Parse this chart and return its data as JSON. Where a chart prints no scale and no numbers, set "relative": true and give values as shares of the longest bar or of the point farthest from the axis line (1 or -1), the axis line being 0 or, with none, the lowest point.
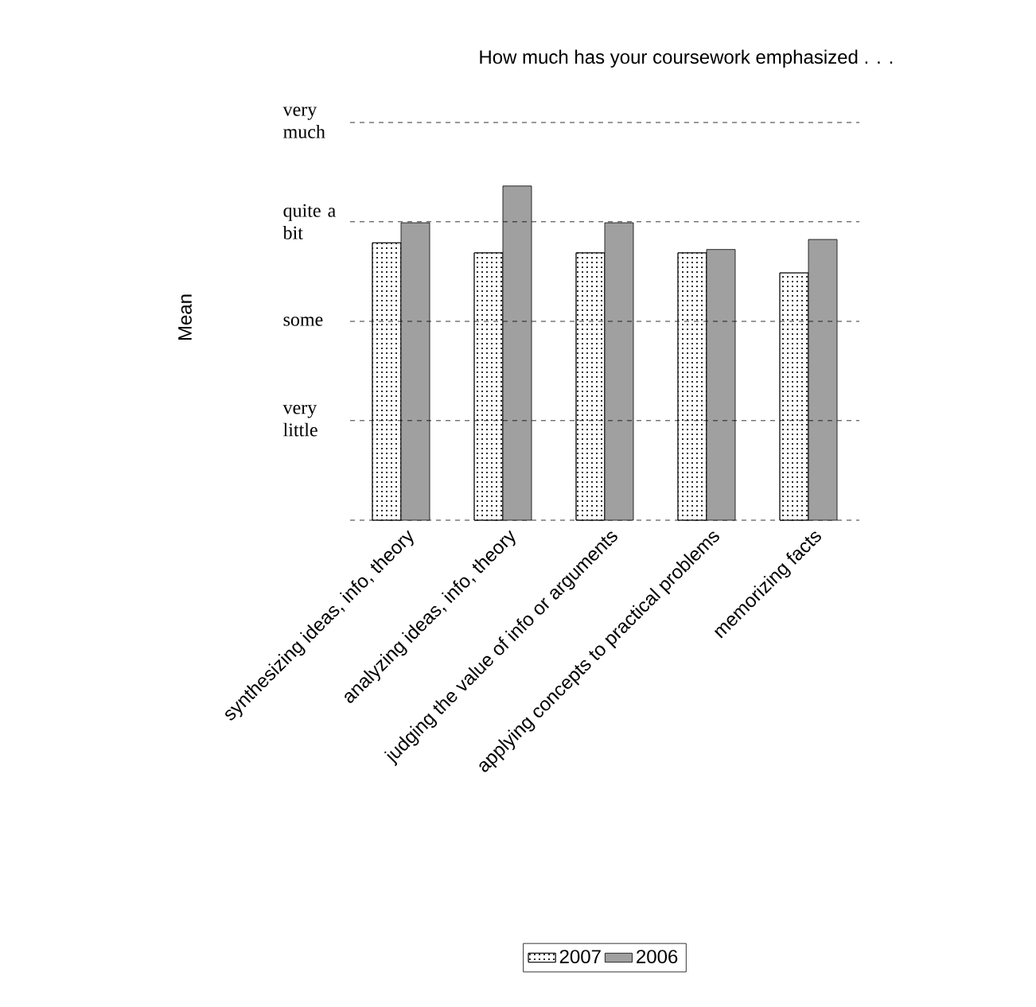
{
  "chart_data": {
    "type": "bar",
    "title": "How much has your coursework emphasized . . .",
    "ylabel": "Mean",
    "relative": true,
    "categories": [
      "synthesizing ideas, info, theory",
      "analyzing ideas, info, theory",
      "judging the value of info or arguments",
      "applying concepts to  practical problems",
      "memorizing facts"
    ],
    "series": [
      {
        "name": "2007",
        "color": "#000000",
        "values": [
          0.83,
          0.8,
          0.8,
          0.8,
          0.74
        ]
      },
      {
        "name": "2006",
        "color": "#a0a0a0",
        "values": [
          0.89,
          1,
          0.89,
          0.81,
          0.84
        ]
      }
    ],
    "ref_lines": [
      {
        "axis": "y",
        "value": 0.298,
        "label": "very little",
        "line_style": "dashed"
      },
      {
        "axis": "y",
        "value": 0.595,
        "label": "some",
        "line_style": "dashed"
      },
      {
        "axis": "y",
        "value": 0.893,
        "label": "quite a bit",
        "line_style": "dashed"
      },
      {
        "axis": "y",
        "value": 1.19,
        "label": "very much",
        "line_style": "dashed"
      }
    ],
    "legend": "bottom"
  }
}
